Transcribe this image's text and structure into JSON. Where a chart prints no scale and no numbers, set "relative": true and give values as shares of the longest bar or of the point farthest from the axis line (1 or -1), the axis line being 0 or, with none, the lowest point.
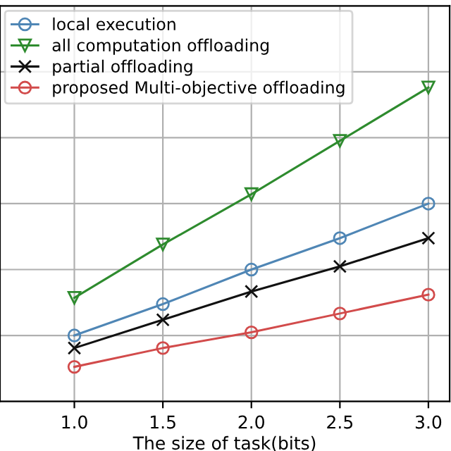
{
  "chart_data": {
    "type": "line",
    "xlabel": "The size of task(bits)",
    "relative": true,
    "x": [
      1.0,
      1.5,
      2.0,
      2.5,
      3.0
    ],
    "xlim": [
      0.58,
      3.12
    ],
    "xticks": [
      {
        "value": 1,
        "label": "1.0"
      },
      {
        "value": 1.5,
        "label": "1.5"
      },
      {
        "value": 2,
        "label": "2.0"
      },
      {
        "value": 2.5,
        "label": "2.5"
      },
      {
        "value": 3,
        "label": "3.0"
      }
    ],
    "tick_labels": "x",
    "grid": true,
    "legend": "top left",
    "series": [
      {
        "name": "local execution",
        "color": "#4f86b5",
        "marker": "circle",
        "values": [
          0.21,
          0.31,
          0.42,
          0.52,
          0.63
        ]
      },
      {
        "name": "all computation offloading",
        "color": "#2e8b2e",
        "marker": "triangle",
        "values": [
          0.33,
          0.5,
          0.66,
          0.83,
          1.0
        ]
      },
      {
        "name": "partial offloading",
        "color": "#111111",
        "marker": "cross",
        "values": [
          0.17,
          0.26,
          0.35,
          0.43,
          0.52
        ]
      },
      {
        "name": "proposed Multi-objective offloading",
        "color": "#d24b4b",
        "marker": "circle",
        "values": [
          0.11,
          0.17,
          0.22,
          0.28,
          0.34
        ]
      }
    ]
  }
}
